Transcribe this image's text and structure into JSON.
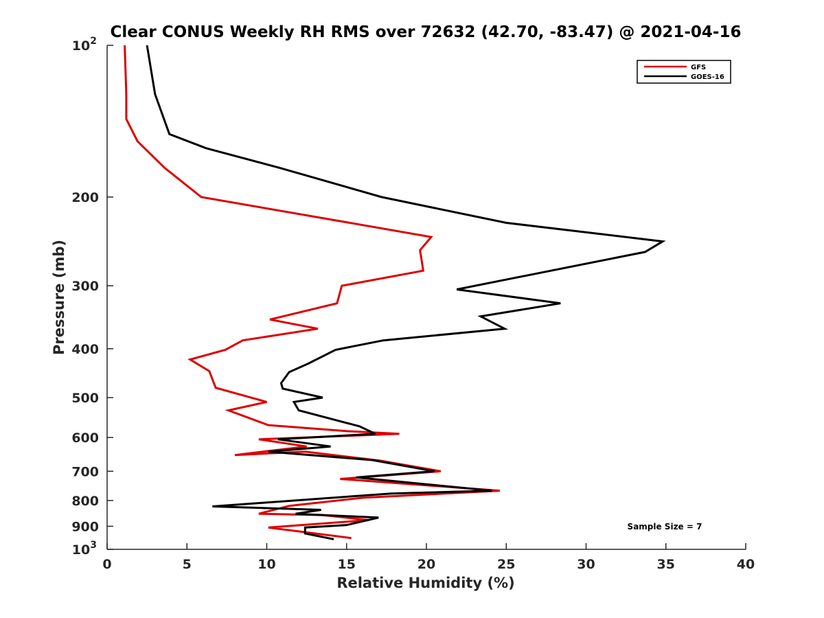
{
  "chart_data": {
    "type": "line",
    "title": "Clear CONUS Weekly RH RMS over 72632 (42.70, -83.47) @ 2021-04-16",
    "xlabel": "Relative Humidity (%)",
    "ylabel": "Pressure (mb)",
    "xlim": [
      0,
      40
    ],
    "ylim": [
      100,
      1000
    ],
    "yscale": "log",
    "y_reversed": true,
    "xticks": [
      0,
      5,
      10,
      15,
      20,
      25,
      30,
      35,
      40
    ],
    "yticks": [
      {
        "value": 100,
        "label": "10",
        "exp": "2"
      },
      {
        "value": 200,
        "label": "200"
      },
      {
        "value": 300,
        "label": "300"
      },
      {
        "value": 400,
        "label": "400"
      },
      {
        "value": 500,
        "label": "500"
      },
      {
        "value": 600,
        "label": "600"
      },
      {
        "value": 700,
        "label": "700"
      },
      {
        "value": 800,
        "label": "800"
      },
      {
        "value": 900,
        "label": "900"
      },
      {
        "value": 1000,
        "label": "10",
        "exp": "3"
      }
    ],
    "grid": false,
    "legend_position": "top-right",
    "annotation": "Sample Size = 7",
    "series": [
      {
        "name": "GFS",
        "color": "#dd0000",
        "points": [
          [
            1.1,
            100
          ],
          [
            1.2,
            125
          ],
          [
            1.2,
            140
          ],
          [
            1.9,
            155
          ],
          [
            3.6,
            175
          ],
          [
            5.9,
            200
          ],
          [
            20.3,
            240
          ],
          [
            19.6,
            255
          ],
          [
            19.8,
            280
          ],
          [
            14.7,
            300
          ],
          [
            14.4,
            325
          ],
          [
            10.2,
            350
          ],
          [
            13.2,
            365
          ],
          [
            8.5,
            385
          ],
          [
            7.4,
            402
          ],
          [
            5.2,
            420
          ],
          [
            6.4,
            443
          ],
          [
            6.8,
            478
          ],
          [
            10.0,
            510
          ],
          [
            7.6,
            530
          ],
          [
            10.1,
            567
          ],
          [
            15.1,
            583
          ],
          [
            18.3,
            590
          ],
          [
            9.5,
            605
          ],
          [
            12.5,
            625
          ],
          [
            8.0,
            650
          ],
          [
            12.4,
            640
          ],
          [
            17.1,
            667
          ],
          [
            20.9,
            700
          ],
          [
            14.6,
            725
          ],
          [
            24.6,
            765
          ],
          [
            16.0,
            790
          ],
          [
            11.4,
            820
          ],
          [
            9.5,
            850
          ],
          [
            13.5,
            855
          ],
          [
            16.4,
            875
          ],
          [
            10.1,
            905
          ],
          [
            15.3,
            950
          ]
        ]
      },
      {
        "name": "GOES-16",
        "color": "#000000",
        "points": [
          [
            2.5,
            100
          ],
          [
            3.0,
            125
          ],
          [
            3.9,
            150
          ],
          [
            6.2,
            160
          ],
          [
            10.8,
            175
          ],
          [
            17.2,
            200
          ],
          [
            25.0,
            225
          ],
          [
            34.8,
            245
          ],
          [
            33.7,
            257
          ],
          [
            21.9,
            305
          ],
          [
            28.4,
            325
          ],
          [
            23.4,
            345
          ],
          [
            24.9,
            365
          ],
          [
            17.3,
            385
          ],
          [
            14.3,
            402
          ],
          [
            12.6,
            428
          ],
          [
            11.4,
            445
          ],
          [
            10.9,
            468
          ],
          [
            11.0,
            480
          ],
          [
            13.5,
            500
          ],
          [
            11.7,
            510
          ],
          [
            12.0,
            530
          ],
          [
            15.8,
            570
          ],
          [
            16.8,
            590
          ],
          [
            10.7,
            605
          ],
          [
            14.0,
            625
          ],
          [
            10.1,
            640
          ],
          [
            16.6,
            665
          ],
          [
            20.5,
            700
          ],
          [
            15.6,
            720
          ],
          [
            24.1,
            765
          ],
          [
            17.8,
            775
          ],
          [
            6.6,
            822
          ],
          [
            13.4,
            835
          ],
          [
            11.8,
            850
          ],
          [
            17.0,
            865
          ],
          [
            15.0,
            895
          ],
          [
            12.4,
            905
          ],
          [
            12.4,
            930
          ],
          [
            14.2,
            955
          ]
        ]
      }
    ]
  }
}
